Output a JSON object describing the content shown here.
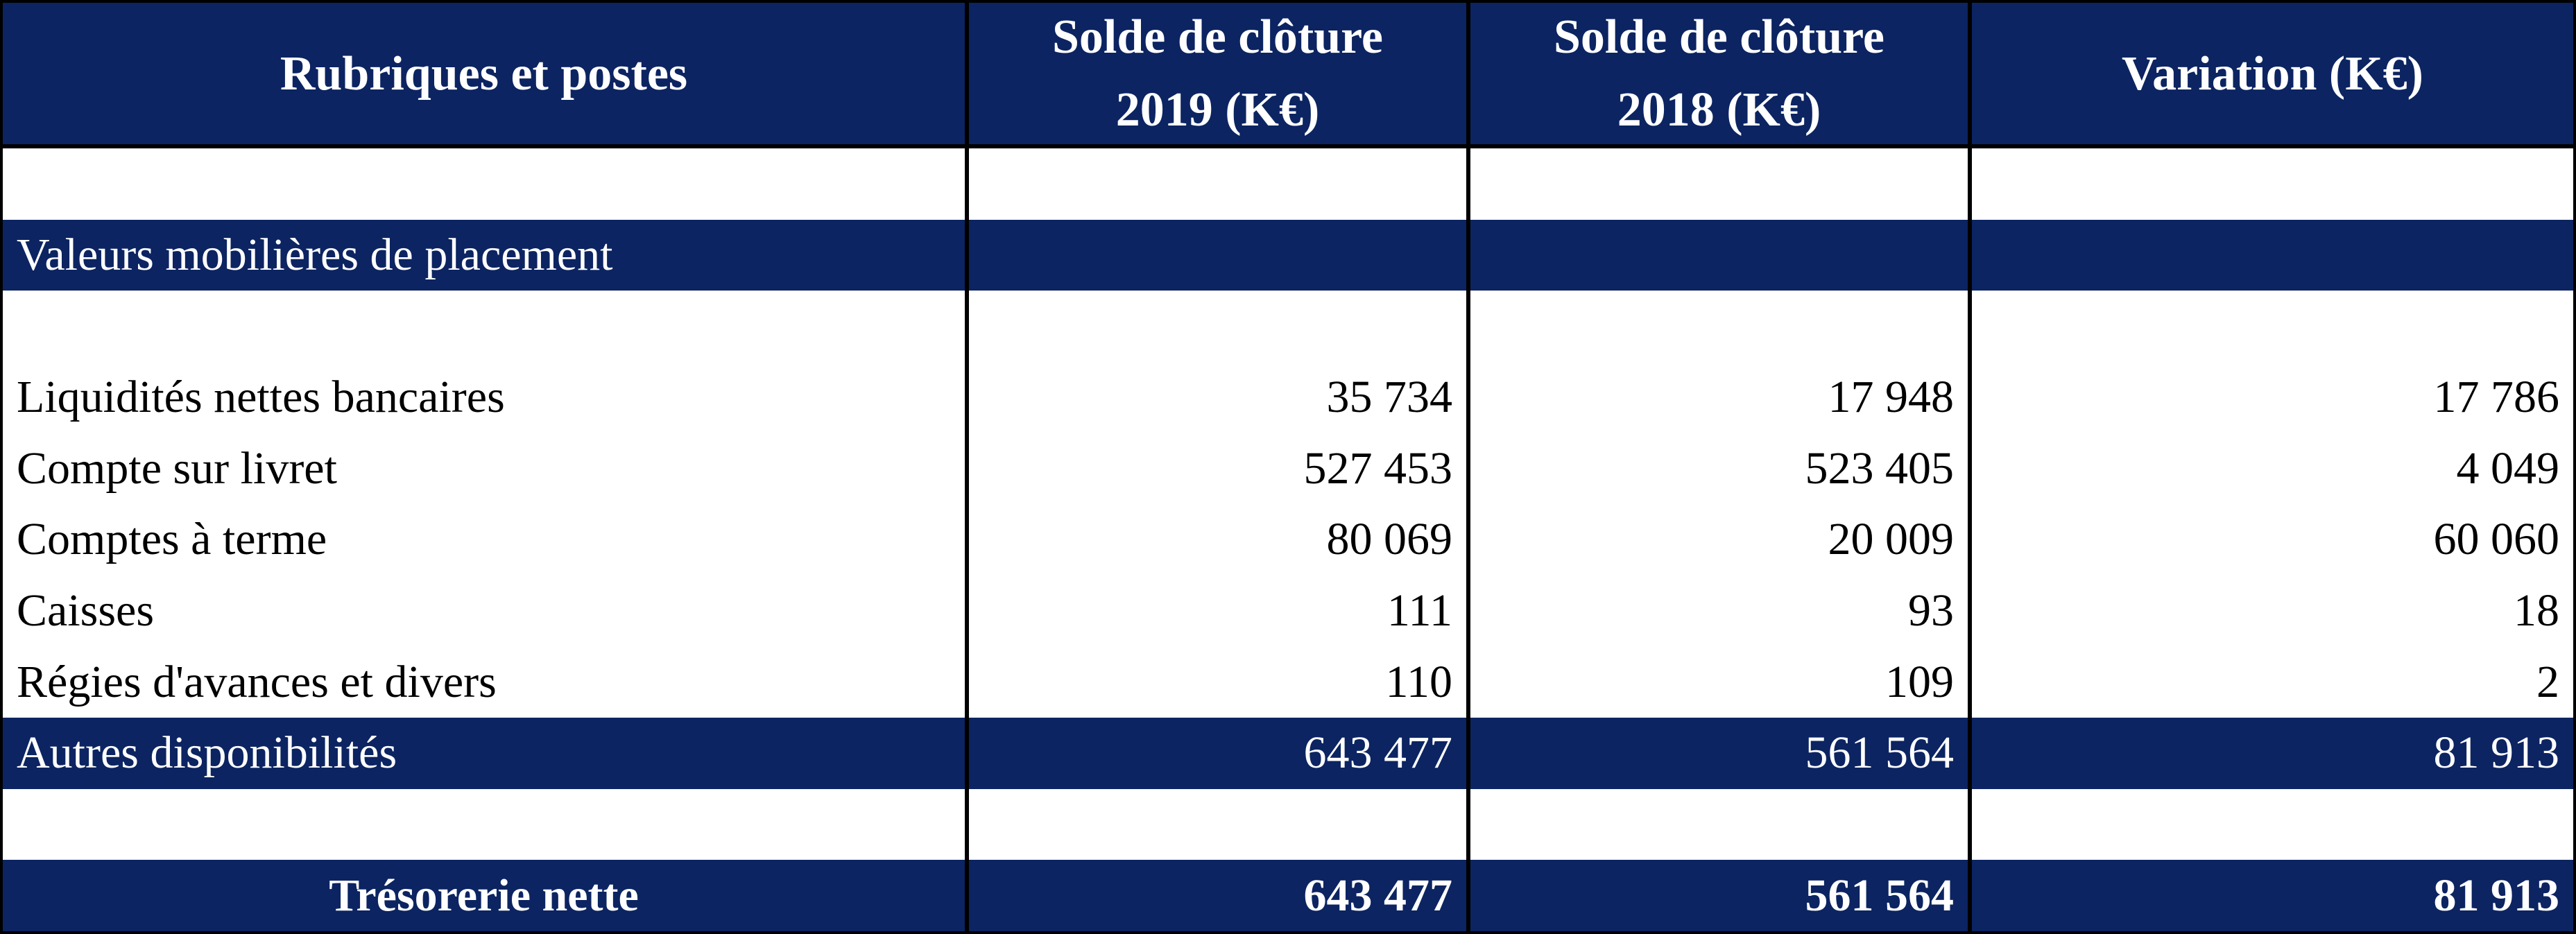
{
  "table": {
    "header": [
      "Rubriques et postes",
      "Solde de clôture 2019 (K€)",
      "Solde de clôture 2018 (K€)",
      "Variation (K€)"
    ],
    "section": "Valeurs mobilières de placement",
    "rows": [
      [
        "Liquidités nettes bancaires",
        "35 734",
        "17 948",
        "17 786"
      ],
      [
        "Compte sur livret",
        "527 453",
        "523 405",
        "4 049"
      ],
      [
        "Comptes à terme",
        "80 069",
        "20 009",
        "60 060"
      ],
      [
        "Caisses",
        "111",
        "93",
        "18"
      ],
      [
        "Régies d'avances et divers",
        "110",
        "109",
        "2"
      ]
    ],
    "subtotal": [
      "Autres disponibilités",
      "643 477",
      "561 564",
      "81 913"
    ],
    "total": [
      "Trésorerie nette",
      "643 477",
      "561 564",
      "81 913"
    ]
  }
}
